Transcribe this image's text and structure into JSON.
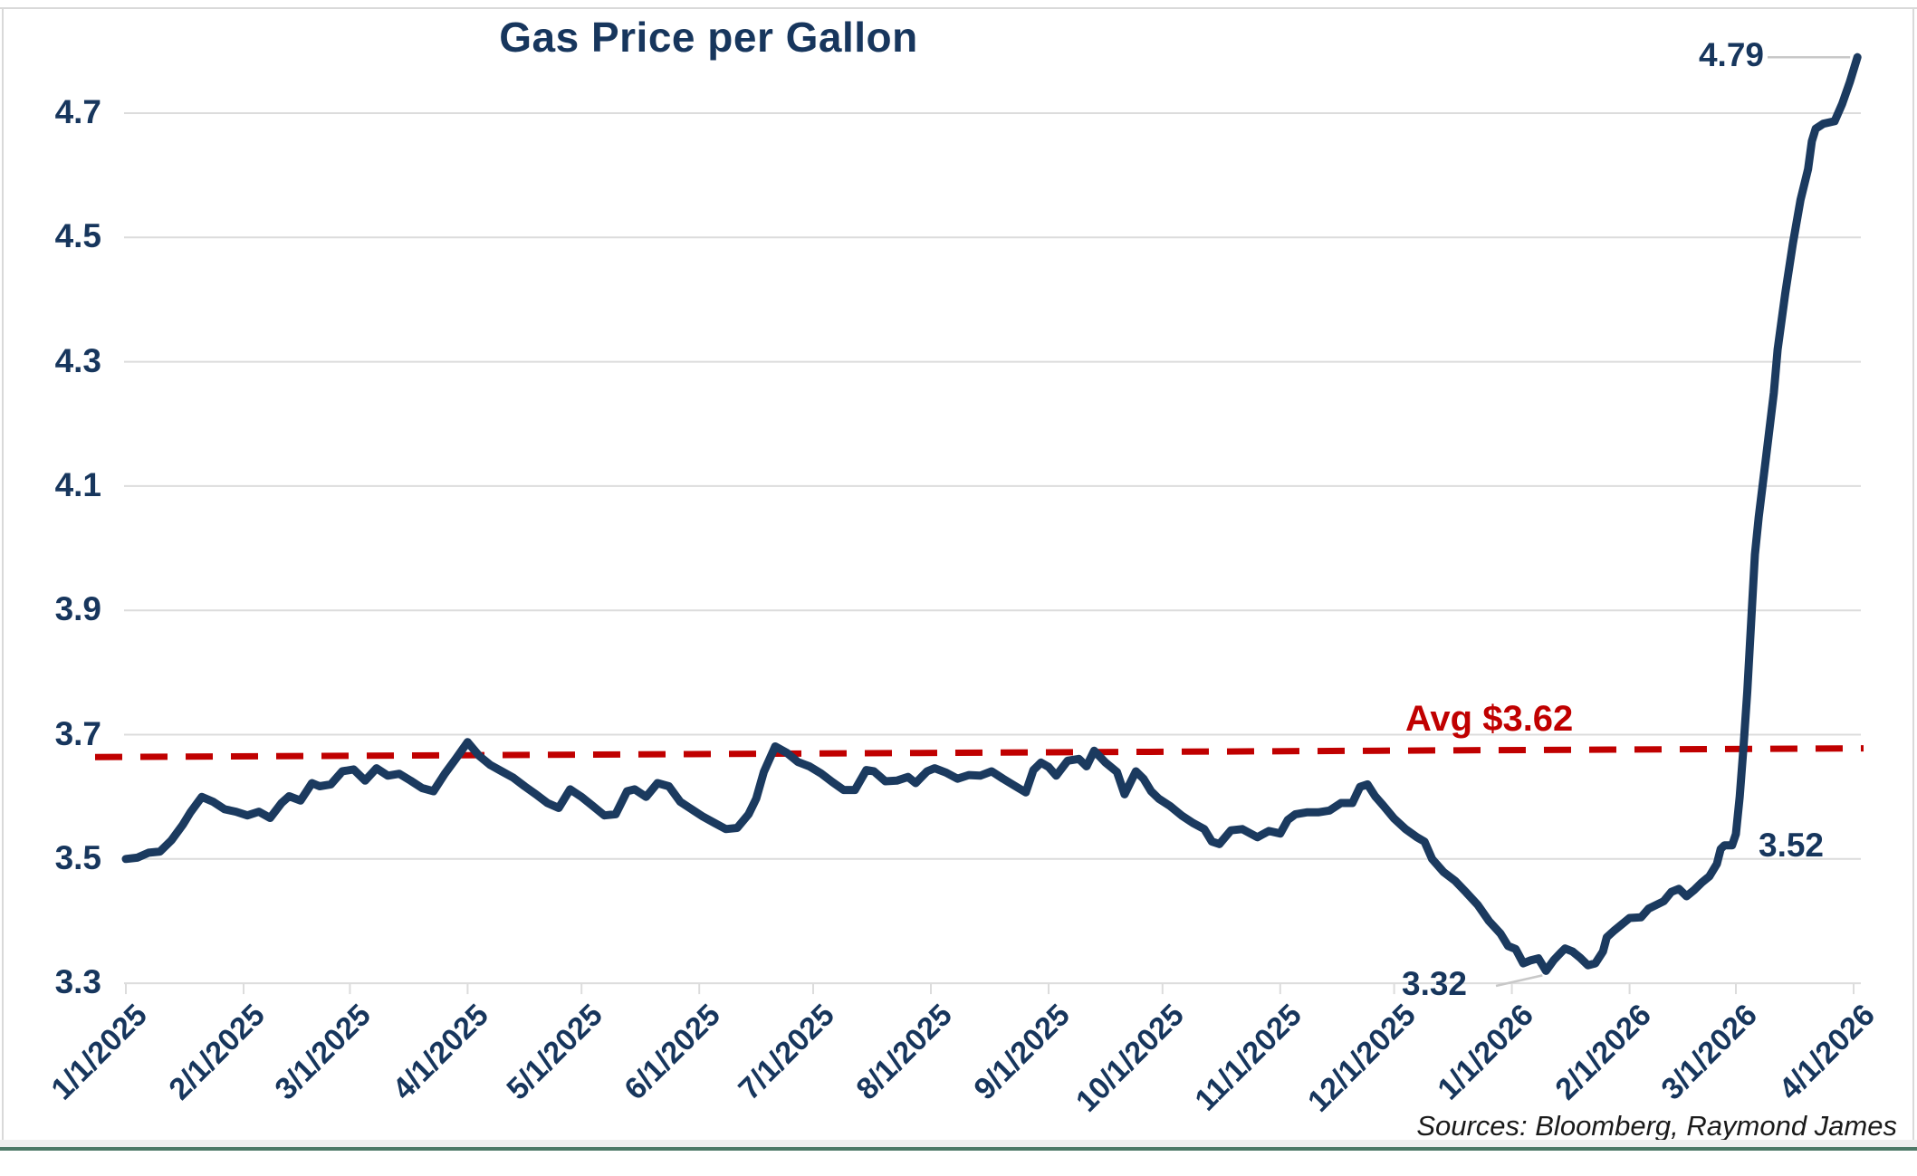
{
  "chart_data": {
    "type": "line",
    "title": "Gas Price per Gallon",
    "source_note": "Sources: Bloomberg, Raymond James",
    "xlabel": "",
    "ylabel": "",
    "ylim": [
      3.3,
      4.7
    ],
    "grid": "horizontal",
    "legend": "none",
    "colors": {
      "line": "#1b3a5f",
      "avg": "#c00000",
      "grid": "#dcdcdc",
      "leader": "#c8c8c8",
      "text": "#17365d"
    },
    "yticks": [
      4.7,
      4.5,
      4.3,
      4.1,
      3.9,
      3.7,
      3.5,
      3.3
    ],
    "ytick_labels": [
      "4.7",
      "4.5",
      "4.3",
      "4.1",
      "3.9",
      "3.7",
      "3.5",
      "3.3"
    ],
    "xticks": [
      {
        "date": "2025-01-01",
        "label": "1/1/2025"
      },
      {
        "date": "2025-02-01",
        "label": "2/1/2025"
      },
      {
        "date": "2025-03-01",
        "label": "3/1/2025"
      },
      {
        "date": "2025-04-01",
        "label": "4/1/2025"
      },
      {
        "date": "2025-05-01",
        "label": "5/1/2025"
      },
      {
        "date": "2025-06-01",
        "label": "6/1/2025"
      },
      {
        "date": "2025-07-01",
        "label": "7/1/2025"
      },
      {
        "date": "2025-08-01",
        "label": "8/1/2025"
      },
      {
        "date": "2025-09-01",
        "label": "9/1/2025"
      },
      {
        "date": "2025-10-01",
        "label": "10/1/2025"
      },
      {
        "date": "2025-11-01",
        "label": "11/1/2025"
      },
      {
        "date": "2025-12-01",
        "label": "12/1/2025"
      },
      {
        "date": "2026-01-01",
        "label": "1/1/2026"
      },
      {
        "date": "2026-02-01",
        "label": "2/1/2026"
      },
      {
        "date": "2026-03-01",
        "label": "3/1/2026"
      },
      {
        "date": "2026-04-01",
        "label": "4/1/2026"
      }
    ],
    "avg_line": {
      "label": "Avg $3.62",
      "stated_value": 3.62,
      "y_left": 3.664,
      "y_right": 3.678,
      "style": "dashed"
    },
    "annotations": {
      "peak": {
        "text": "4.79",
        "date": "2026-04-02",
        "value": 4.79
      },
      "pre_spike": {
        "text": "3.52",
        "date": "2026-02-27",
        "value": 3.52
      },
      "min": {
        "text": "3.32",
        "date": "2026-01-10",
        "value": 3.32
      }
    },
    "series_name": "Gas price ($ per gallon)",
    "points": [
      [
        "2025-01-01",
        3.5
      ],
      [
        "2025-01-04",
        3.502
      ],
      [
        "2025-01-07",
        3.51
      ],
      [
        "2025-01-10",
        3.512
      ],
      [
        "2025-01-13",
        3.53
      ],
      [
        "2025-01-16",
        3.555
      ],
      [
        "2025-01-18",
        3.575
      ],
      [
        "2025-01-21",
        3.6
      ],
      [
        "2025-01-24",
        3.592
      ],
      [
        "2025-01-27",
        3.58
      ],
      [
        "2025-01-30",
        3.576
      ],
      [
        "2025-02-02",
        3.57
      ],
      [
        "2025-02-05",
        3.576
      ],
      [
        "2025-02-08",
        3.566
      ],
      [
        "2025-02-11",
        3.59
      ],
      [
        "2025-02-13",
        3.601
      ],
      [
        "2025-02-16",
        3.594
      ],
      [
        "2025-02-19",
        3.622
      ],
      [
        "2025-02-21",
        3.617
      ],
      [
        "2025-02-24",
        3.62
      ],
      [
        "2025-02-27",
        3.641
      ],
      [
        "2025-03-02",
        3.644
      ],
      [
        "2025-03-05",
        3.626
      ],
      [
        "2025-03-08",
        3.646
      ],
      [
        "2025-03-11",
        3.634
      ],
      [
        "2025-03-14",
        3.637
      ],
      [
        "2025-03-17",
        3.626
      ],
      [
        "2025-03-20",
        3.614
      ],
      [
        "2025-03-23",
        3.609
      ],
      [
        "2025-03-26",
        3.637
      ],
      [
        "2025-03-29",
        3.662
      ],
      [
        "2025-04-01",
        3.688
      ],
      [
        "2025-04-04",
        3.666
      ],
      [
        "2025-04-07",
        3.651
      ],
      [
        "2025-04-10",
        3.641
      ],
      [
        "2025-04-13",
        3.631
      ],
      [
        "2025-04-16",
        3.617
      ],
      [
        "2025-04-19",
        3.604
      ],
      [
        "2025-04-22",
        3.59
      ],
      [
        "2025-04-25",
        3.582
      ],
      [
        "2025-04-28",
        3.612
      ],
      [
        "2025-05-01",
        3.6
      ],
      [
        "2025-05-04",
        3.585
      ],
      [
        "2025-05-07",
        3.57
      ],
      [
        "2025-05-10",
        3.572
      ],
      [
        "2025-05-13",
        3.609
      ],
      [
        "2025-05-15",
        3.612
      ],
      [
        "2025-05-18",
        3.6
      ],
      [
        "2025-05-21",
        3.622
      ],
      [
        "2025-05-24",
        3.617
      ],
      [
        "2025-05-27",
        3.592
      ],
      [
        "2025-05-30",
        3.58
      ],
      [
        "2025-06-02",
        3.568
      ],
      [
        "2025-06-05",
        3.558
      ],
      [
        "2025-06-08",
        3.548
      ],
      [
        "2025-06-11",
        3.55
      ],
      [
        "2025-06-14",
        3.572
      ],
      [
        "2025-06-16",
        3.597
      ],
      [
        "2025-06-18",
        3.64
      ],
      [
        "2025-06-21",
        3.681
      ],
      [
        "2025-06-24",
        3.671
      ],
      [
        "2025-06-27",
        3.656
      ],
      [
        "2025-06-30",
        3.649
      ],
      [
        "2025-07-03",
        3.638
      ],
      [
        "2025-07-06",
        3.624
      ],
      [
        "2025-07-09",
        3.611
      ],
      [
        "2025-07-12",
        3.611
      ],
      [
        "2025-07-15",
        3.643
      ],
      [
        "2025-07-17",
        3.641
      ],
      [
        "2025-07-20",
        3.625
      ],
      [
        "2025-07-23",
        3.626
      ],
      [
        "2025-07-26",
        3.632
      ],
      [
        "2025-07-28",
        3.622
      ],
      [
        "2025-07-31",
        3.641
      ],
      [
        "2025-08-02",
        3.646
      ],
      [
        "2025-08-05",
        3.639
      ],
      [
        "2025-08-08",
        3.629
      ],
      [
        "2025-08-11",
        3.635
      ],
      [
        "2025-08-14",
        3.634
      ],
      [
        "2025-08-17",
        3.641
      ],
      [
        "2025-08-20",
        3.629
      ],
      [
        "2025-08-23",
        3.618
      ],
      [
        "2025-08-26",
        3.607
      ],
      [
        "2025-08-28",
        3.643
      ],
      [
        "2025-08-30",
        3.655
      ],
      [
        "2025-09-01",
        3.648
      ],
      [
        "2025-09-03",
        3.634
      ],
      [
        "2025-09-06",
        3.658
      ],
      [
        "2025-09-09",
        3.661
      ],
      [
        "2025-09-11",
        3.649
      ],
      [
        "2025-09-13",
        3.674
      ],
      [
        "2025-09-16",
        3.655
      ],
      [
        "2025-09-19",
        3.64
      ],
      [
        "2025-09-21",
        3.604
      ],
      [
        "2025-09-24",
        3.641
      ],
      [
        "2025-09-26",
        3.629
      ],
      [
        "2025-09-28",
        3.609
      ],
      [
        "2025-09-30",
        3.597
      ],
      [
        "2025-10-03",
        3.585
      ],
      [
        "2025-10-06",
        3.57
      ],
      [
        "2025-10-09",
        3.558
      ],
      [
        "2025-10-12",
        3.548
      ],
      [
        "2025-10-14",
        3.528
      ],
      [
        "2025-10-16",
        3.524
      ],
      [
        "2025-10-19",
        3.546
      ],
      [
        "2025-10-22",
        3.548
      ],
      [
        "2025-10-26",
        3.535
      ],
      [
        "2025-10-29",
        3.545
      ],
      [
        "2025-11-01",
        3.541
      ],
      [
        "2025-11-03",
        3.563
      ],
      [
        "2025-11-05",
        3.572
      ],
      [
        "2025-11-08",
        3.575
      ],
      [
        "2025-11-11",
        3.575
      ],
      [
        "2025-11-14",
        3.578
      ],
      [
        "2025-11-17",
        3.59
      ],
      [
        "2025-11-20",
        3.59
      ],
      [
        "2025-11-22",
        3.616
      ],
      [
        "2025-11-24",
        3.62
      ],
      [
        "2025-11-26",
        3.601
      ],
      [
        "2025-11-28",
        3.587
      ],
      [
        "2025-12-01",
        3.565
      ],
      [
        "2025-12-04",
        3.548
      ],
      [
        "2025-12-07",
        3.535
      ],
      [
        "2025-12-09",
        3.528
      ],
      [
        "2025-12-11",
        3.5
      ],
      [
        "2025-12-14",
        3.479
      ],
      [
        "2025-12-17",
        3.465
      ],
      [
        "2025-12-20",
        3.446
      ],
      [
        "2025-12-23",
        3.426
      ],
      [
        "2025-12-26",
        3.4
      ],
      [
        "2025-12-29",
        3.38
      ],
      [
        "2025-12-31",
        3.36
      ],
      [
        "2026-01-02",
        3.355
      ],
      [
        "2026-01-04",
        3.332
      ],
      [
        "2026-01-06",
        3.337
      ],
      [
        "2026-01-08",
        3.34
      ],
      [
        "2026-01-10",
        3.32
      ],
      [
        "2026-01-12",
        3.337
      ],
      [
        "2026-01-14",
        3.35
      ],
      [
        "2026-01-15",
        3.356
      ],
      [
        "2026-01-17",
        3.351
      ],
      [
        "2026-01-19",
        3.341
      ],
      [
        "2026-01-21",
        3.329
      ],
      [
        "2026-01-23",
        3.332
      ],
      [
        "2026-01-25",
        3.351
      ],
      [
        "2026-01-26",
        3.374
      ],
      [
        "2026-01-28",
        3.385
      ],
      [
        "2026-01-30",
        3.395
      ],
      [
        "2026-02-01",
        3.405
      ],
      [
        "2026-02-04",
        3.406
      ],
      [
        "2026-02-06",
        3.42
      ],
      [
        "2026-02-08",
        3.426
      ],
      [
        "2026-02-10",
        3.432
      ],
      [
        "2026-02-12",
        3.447
      ],
      [
        "2026-02-14",
        3.452
      ],
      [
        "2026-02-16",
        3.44
      ],
      [
        "2026-02-18",
        3.45
      ],
      [
        "2026-02-20",
        3.462
      ],
      [
        "2026-02-22",
        3.472
      ],
      [
        "2026-02-24",
        3.492
      ],
      [
        "2026-02-25",
        3.516
      ],
      [
        "2026-02-26",
        3.522
      ],
      [
        "2026-02-28",
        3.522
      ],
      [
        "2026-03-01",
        3.54
      ],
      [
        "2026-03-02",
        3.6
      ],
      [
        "2026-03-03",
        3.68
      ],
      [
        "2026-03-04",
        3.77
      ],
      [
        "2026-03-05",
        3.88
      ],
      [
        "2026-03-06",
        3.99
      ],
      [
        "2026-03-07",
        4.05
      ],
      [
        "2026-03-09",
        4.15
      ],
      [
        "2026-03-11",
        4.25
      ],
      [
        "2026-03-12",
        4.32
      ],
      [
        "2026-03-14",
        4.41
      ],
      [
        "2026-03-16",
        4.49
      ],
      [
        "2026-03-18",
        4.56
      ],
      [
        "2026-03-20",
        4.61
      ],
      [
        "2026-03-21",
        4.655
      ],
      [
        "2026-03-22",
        4.675
      ],
      [
        "2026-03-24",
        4.683
      ],
      [
        "2026-03-27",
        4.687
      ],
      [
        "2026-03-29",
        4.715
      ],
      [
        "2026-03-31",
        4.75
      ],
      [
        "2026-04-02",
        4.79
      ]
    ]
  }
}
